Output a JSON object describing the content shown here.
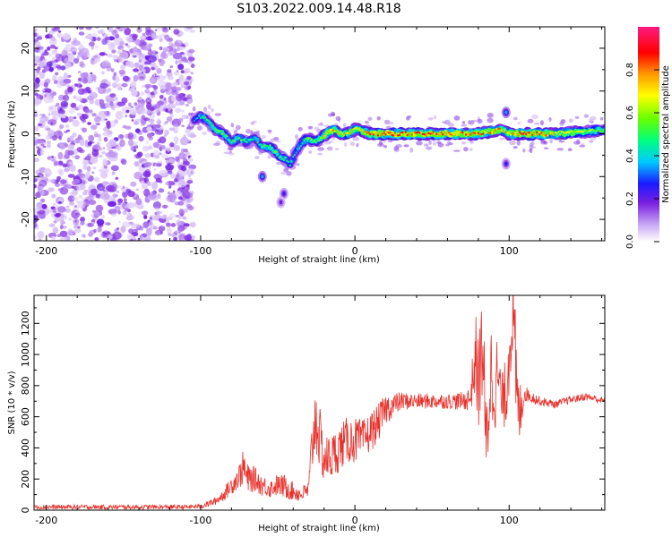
{
  "figure_title": "S103.2022.009.14.48.R18",
  "chart_data": [
    {
      "type": "heatmap",
      "title": "",
      "xlabel": "Height of straight line (km)",
      "ylabel": "Frequency (Hz)",
      "xlim": [
        -208,
        162
      ],
      "ylim": [
        -25,
        25
      ],
      "xticks": [
        -200,
        -100,
        0,
        100
      ],
      "yticks": [
        -20,
        -10,
        0,
        10,
        20
      ],
      "colorbar": {
        "label": "Normalized spectral amplitude",
        "range": [
          0,
          1
        ],
        "ticks": [
          0.0,
          0.2,
          0.4,
          0.6,
          0.8
        ],
        "tick_labels": [
          "0.0",
          "0.2",
          "0.4",
          "0.6",
          "0.8"
        ],
        "colormap": [
          "#ffffff",
          "#c9a7f5",
          "#7a1fe0",
          "#1a1aff",
          "#00c8ff",
          "#00ff80",
          "#66ff00",
          "#ffff00",
          "#ff9900",
          "#ff0000",
          "#ff1a80"
        ]
      },
      "noise_region_km": [
        -208,
        -105
      ],
      "ridge": {
        "x": [
          -105,
          -100,
          -95,
          -90,
          -85,
          -80,
          -75,
          -70,
          -65,
          -60,
          -55,
          -50,
          -45,
          -42,
          -38,
          -34,
          -30,
          -26,
          -22,
          -18,
          -14,
          -10,
          -5,
          0,
          2,
          10,
          20,
          40,
          60,
          80,
          95,
          100,
          110,
          130,
          150,
          162
        ],
        "y": [
          3,
          4,
          3,
          1,
          0,
          -2,
          -1,
          -2,
          -1,
          -3,
          -3,
          -5,
          -6,
          -7,
          -4,
          -2,
          -1,
          -2,
          -1,
          0,
          1,
          0,
          0,
          1,
          1,
          0,
          0,
          0,
          0,
          0,
          1,
          0,
          0,
          0,
          0.5,
          1
        ],
        "amplitude": [
          0.35,
          0.45,
          0.5,
          0.55,
          0.55,
          0.5,
          0.5,
          0.5,
          0.45,
          0.5,
          0.55,
          0.55,
          0.5,
          0.45,
          0.4,
          0.45,
          0.6,
          0.55,
          0.6,
          0.8,
          0.75,
          0.7,
          0.7,
          0.75,
          0.7,
          0.85,
          0.9,
          0.85,
          0.85,
          0.8,
          0.75,
          0.75,
          0.9,
          0.75,
          0.65,
          0.55
        ]
      },
      "secondary_blobs": [
        {
          "x": -60,
          "y": -10,
          "amplitude": 0.35
        },
        {
          "x": -46,
          "y": -14,
          "amplitude": 0.25
        },
        {
          "x": -48,
          "y": -16,
          "amplitude": 0.2
        },
        {
          "x": 98,
          "y": 5,
          "amplitude": 0.35
        },
        {
          "x": 98,
          "y": -7,
          "amplitude": 0.25
        }
      ]
    },
    {
      "type": "line",
      "title": "",
      "xlabel": "Height of straight line (km)",
      "ylabel": "SNR (10 * v/v)",
      "xlim": [
        -208,
        162
      ],
      "ylim": [
        0,
        1380
      ],
      "xticks": [
        -200,
        -100,
        0,
        100
      ],
      "yticks": [
        0,
        200,
        400,
        600,
        800,
        1000,
        1200
      ],
      "series": [
        {
          "color": "#e8312b",
          "x": [
            -208,
            -190,
            -170,
            -150,
            -130,
            -110,
            -100,
            -95,
            -90,
            -85,
            -80,
            -75,
            -72,
            -70,
            -65,
            -60,
            -55,
            -50,
            -45,
            -40,
            -35,
            -30,
            -27,
            -25,
            -22,
            -20,
            -15,
            -10,
            -5,
            0,
            5,
            10,
            15,
            20,
            30,
            40,
            50,
            60,
            70,
            75,
            78,
            80,
            83,
            85,
            88,
            90,
            93,
            95,
            98,
            100,
            102,
            104,
            106,
            110,
            120,
            130,
            140,
            150,
            162
          ],
          "y": [
            20,
            20,
            20,
            20,
            20,
            20,
            25,
            40,
            60,
            100,
            160,
            220,
            280,
            200,
            200,
            160,
            140,
            160,
            150,
            120,
            100,
            130,
            500,
            600,
            400,
            330,
            340,
            400,
            450,
            450,
            450,
            500,
            560,
            650,
            700,
            700,
            700,
            700,
            700,
            720,
            1000,
            800,
            1100,
            350,
            900,
            800,
            850,
            700,
            750,
            1000,
            1300,
            900,
            600,
            750,
            700,
            680,
            710,
            730,
            700
          ],
          "noise_amplitude": [
            15,
            15,
            15,
            15,
            15,
            15,
            15,
            20,
            25,
            40,
            60,
            80,
            120,
            100,
            80,
            70,
            60,
            70,
            80,
            60,
            50,
            60,
            250,
            250,
            200,
            150,
            150,
            150,
            150,
            150,
            130,
            130,
            120,
            100,
            60,
            50,
            50,
            50,
            60,
            80,
            300,
            300,
            400,
            300,
            350,
            300,
            300,
            150,
            250,
            250,
            350,
            400,
            250,
            50,
            30,
            25,
            25,
            25,
            25
          ]
        }
      ]
    }
  ]
}
